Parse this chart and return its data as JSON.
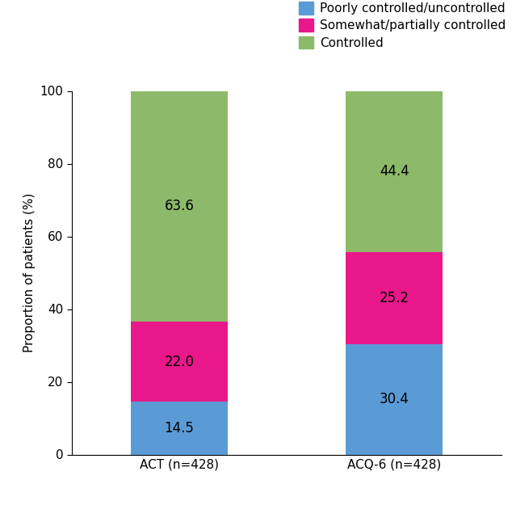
{
  "categories": [
    "ACT (n=428)",
    "ACQ-6 (n=428)"
  ],
  "poorly_controlled": [
    14.5,
    30.4
  ],
  "somewhat_controlled": [
    22.0,
    25.2
  ],
  "controlled": [
    63.6,
    44.4
  ],
  "colors": {
    "poorly": "#5b9bd5",
    "somewhat": "#e8188a",
    "controlled": "#8db96b"
  },
  "legend_labels": [
    "Poorly controlled/uncontrolled",
    "Somewhat/partially controlled",
    "Controlled"
  ],
  "ylabel": "Proportion of patients (%)",
  "ylim": [
    0,
    100
  ],
  "yticks": [
    0,
    20,
    40,
    60,
    80,
    100
  ],
  "label_fontsize": 11,
  "tick_fontsize": 11,
  "legend_fontsize": 11,
  "value_fontsize": 12,
  "bar_width": 0.45,
  "background_color": "#ffffff"
}
